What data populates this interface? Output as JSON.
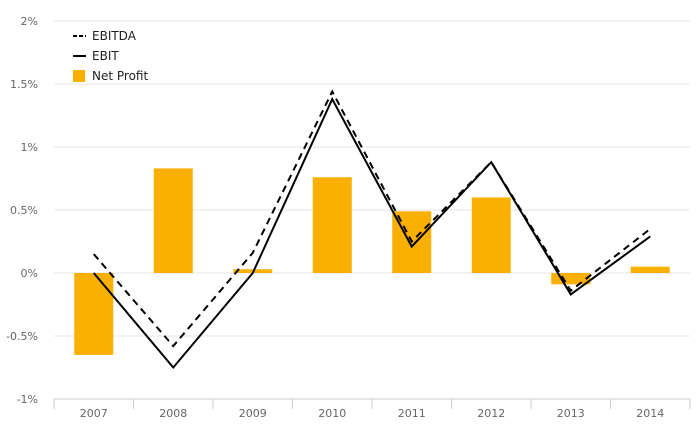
{
  "chart_data": {
    "type": "bar",
    "categories": [
      "2007",
      "2008",
      "2009",
      "2010",
      "2011",
      "2012",
      "2013",
      "2014"
    ],
    "series": [
      {
        "name": "EBITDA",
        "kind": "line",
        "style": "dashed",
        "color": "#000000",
        "values": [
          0.15,
          -0.58,
          0.16,
          1.44,
          0.25,
          0.88,
          -0.14,
          0.35
        ]
      },
      {
        "name": "EBIT",
        "kind": "line",
        "style": "solid",
        "color": "#000000",
        "values": [
          0.0,
          -0.75,
          0.0,
          1.38,
          0.21,
          0.88,
          -0.17,
          0.29
        ]
      },
      {
        "name": "Net Profit",
        "kind": "bar",
        "color": "#f9b000",
        "values": [
          -0.65,
          0.83,
          0.03,
          0.76,
          0.49,
          0.6,
          -0.09,
          0.05
        ]
      }
    ],
    "y_ticks": [
      {
        "value": 2,
        "label": "2%"
      },
      {
        "value": 1.5,
        "label": "1.5%"
      },
      {
        "value": 1,
        "label": "1%"
      },
      {
        "value": 0.5,
        "label": "0.5%"
      },
      {
        "value": 0,
        "label": "0%"
      },
      {
        "value": -0.5,
        "label": "-0.5%"
      },
      {
        "value": -1,
        "label": "-1%"
      }
    ],
    "ylim": [
      -1,
      2
    ],
    "grid": true,
    "legend_position": "top-left"
  }
}
